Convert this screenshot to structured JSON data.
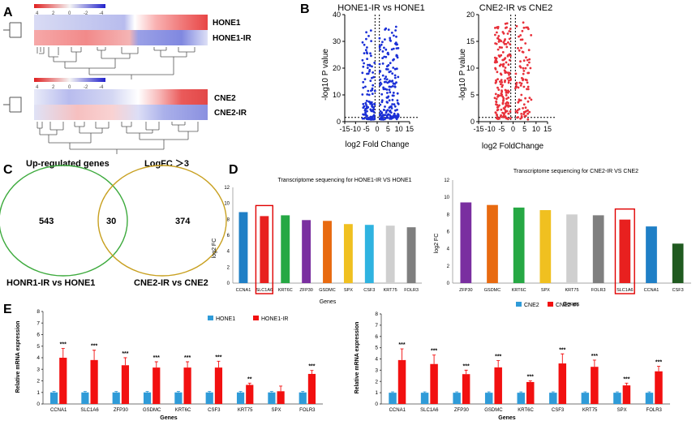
{
  "panel_letters": {
    "a": "A",
    "b": "B",
    "c": "C",
    "d": "D",
    "e": "E"
  },
  "colors": {
    "heat_low": "#2222cc",
    "heat_mid": "#f4f4f4",
    "heat_high": "#e02020",
    "volcano_b1": "#1a2fd6",
    "volcano_b2": "#e8303a",
    "venn_left": "#3daa3d",
    "venn_right": "#c8a020",
    "d_colors": [
      "#1f7fc6",
      "#e8201f",
      "#26a844",
      "#7a2fa0",
      "#e86a10",
      "#f0c020",
      "#2fb3e0",
      "#cfcfcf",
      "#7f7f7f",
      "#1f7fc6",
      "#205a20"
    ],
    "e_series1": "#2f9bd8",
    "e_series2": "#f21010"
  },
  "heatmaps": [
    {
      "scale_ticks": [
        "4",
        "2",
        "0",
        "-2",
        "-4"
      ],
      "rows": [
        "HONE1",
        "HONE1-IR"
      ]
    },
    {
      "scale_ticks": [
        "4",
        "2",
        "0",
        "-2",
        "-4"
      ],
      "rows": [
        "CNE2",
        "CNE2-IR"
      ]
    }
  ],
  "venn": {
    "title_left": "Up-regulated genes",
    "title_right": "LogFC ＞3",
    "left_only": "543",
    "overlap": "30",
    "right_only": "374",
    "label_left": "HONR1-IR vs HONE1",
    "label_right": "CNE2-IR vs CNE2"
  },
  "chart_data": [
    {
      "type": "scatter",
      "title": "HONE1-IR vs HONE1",
      "xlabel": "log2 Fold Change",
      "ylabel": "-log10 P value",
      "xlim": [
        -15,
        15
      ],
      "ylim": [
        0,
        40
      ],
      "xticks": [
        "-15",
        "-10",
        "-5",
        "0",
        "5",
        "10",
        "15"
      ],
      "yticks": [
        "0",
        "10",
        "20",
        "30",
        "40"
      ]
    },
    {
      "type": "scatter",
      "title": "CNE2-IR vs CNE2",
      "xlabel": "log2 FoldChange",
      "ylabel": "-log10 P value",
      "xlim": [
        -15,
        15
      ],
      "ylim": [
        0,
        20
      ],
      "xticks": [
        "-15",
        "-10",
        "-5",
        "0",
        "5",
        "10",
        "15"
      ],
      "yticks": [
        "0",
        "5",
        "10",
        "15",
        "20"
      ]
    },
    {
      "type": "bar",
      "title": "Transcriptome sequencing for  HONE1-IR VS HONE1",
      "xlabel": "Genes",
      "ylabel": "log2 FC",
      "ylim": [
        0,
        12
      ],
      "yticks": [
        "0",
        "2",
        "4",
        "6",
        "8",
        "10",
        "12"
      ],
      "categories": [
        "CCNA1",
        "SLC1A6",
        "KRT6C",
        "ZFP30",
        "GSDMC",
        "SPX",
        "CSF3",
        "KRT75",
        "FOLR3"
      ],
      "values": [
        8.9,
        8.4,
        8.5,
        7.9,
        7.8,
        7.4,
        7.3,
        7.2,
        7.0
      ],
      "highlight": 1
    },
    {
      "type": "bar",
      "title": "Transcriptome sequencing for  CNE2-IR VS CNE2",
      "xlabel": "Genes",
      "ylabel": "log2 FC",
      "ylim": [
        0,
        12
      ],
      "yticks": [
        "0",
        "2",
        "4",
        "6",
        "8",
        "10",
        "12"
      ],
      "categories": [
        "ZFP30",
        "GSDMC",
        "KRT6C",
        "SPX",
        "KRT75",
        "FOLR3",
        "SLC1A6",
        "CCNA1",
        "CSF3"
      ],
      "values": [
        9.4,
        9.1,
        8.8,
        8.5,
        8.0,
        7.9,
        7.4,
        6.6,
        4.6
      ],
      "highlight": 6
    },
    {
      "type": "bar",
      "xlabel": "Genes",
      "ylabel": "Relative mRNA expression",
      "ylim": [
        0,
        8
      ],
      "yticks": [
        "0",
        "1",
        "2",
        "3",
        "4",
        "5",
        "6",
        "7",
        "8"
      ],
      "categories": [
        "CCNA1",
        "SLC1A6",
        "ZFP30",
        "GSDMC",
        "KRT6C",
        "CSF3",
        "KRT75",
        "SPX",
        "FOLR3"
      ],
      "series": [
        {
          "name": "HONE1",
          "values": [
            1,
            1,
            1,
            1,
            1,
            1,
            1,
            1,
            1
          ],
          "errors": [
            0.08,
            0.08,
            0.08,
            0.08,
            0.08,
            0.08,
            0.08,
            0.08,
            0.08
          ]
        },
        {
          "name": "HONE1-IR",
          "values": [
            4.0,
            3.8,
            3.35,
            3.15,
            3.15,
            3.15,
            1.65,
            1.1,
            2.6
          ],
          "errors": [
            0.8,
            0.85,
            0.65,
            0.5,
            0.5,
            0.55,
            0.15,
            0.45,
            0.3
          ]
        }
      ],
      "significance": [
        "***",
        "***",
        "***",
        "***",
        "***",
        "***",
        "**",
        "",
        "***"
      ]
    },
    {
      "type": "bar",
      "xlabel": "Genes",
      "ylabel": "Relative mRNA expression",
      "ylim": [
        0,
        8
      ],
      "yticks": [
        "0",
        "1",
        "2",
        "3",
        "4",
        "5",
        "6",
        "7",
        "8"
      ],
      "categories": [
        "CCNA1",
        "SLC1A6",
        "ZFP30",
        "GSDMC",
        "KRT6C",
        "CSF3",
        "KRT75",
        "SPX",
        "FOLR3"
      ],
      "series": [
        {
          "name": "CNE2",
          "values": [
            1,
            1,
            1,
            1,
            1,
            1,
            1,
            1,
            1
          ],
          "errors": [
            0.08,
            0.08,
            0.08,
            0.08,
            0.08,
            0.08,
            0.08,
            0.08,
            0.08
          ]
        },
        {
          "name": "CNE2-IR",
          "values": [
            3.9,
            3.55,
            2.65,
            3.25,
            1.95,
            3.6,
            3.3,
            1.65,
            2.9
          ],
          "errors": [
            1.0,
            0.8,
            0.35,
            0.6,
            0.1,
            0.85,
            0.6,
            0.2,
            0.45
          ]
        }
      ],
      "significance": [
        "***",
        "***",
        "***",
        "***",
        "***",
        "***",
        "***",
        "***",
        "***"
      ]
    }
  ]
}
